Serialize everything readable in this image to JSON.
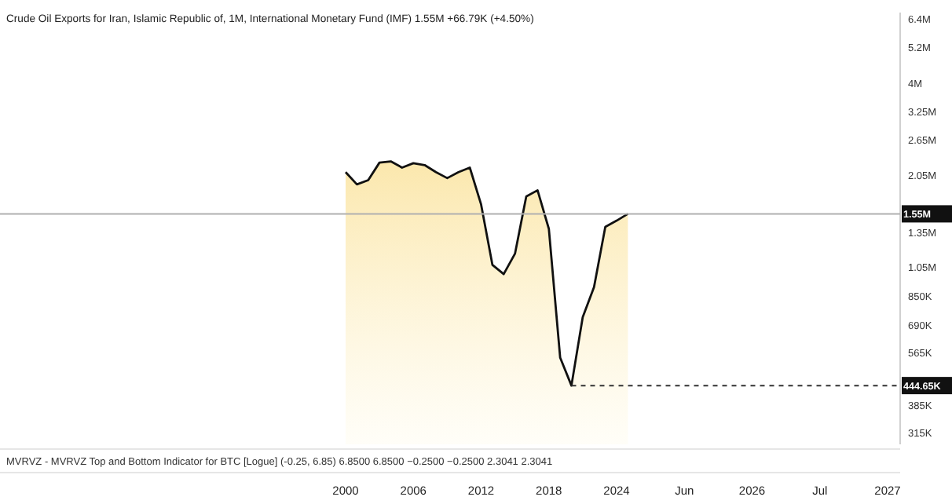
{
  "chart_data": {
    "type": "area",
    "title": "Crude Oil Exports for Iran, Islamic Republic of, 1M, International Monetary Fund (IMF)  1.55M  +66.79K (+4.50%)",
    "categories": [
      "2000",
      null,
      null,
      null,
      null,
      null,
      "2006",
      null,
      null,
      null,
      null,
      null,
      "2012",
      null,
      null,
      null,
      null,
      null,
      "2018",
      null,
      null,
      null,
      null,
      null,
      "2024",
      null,
      null,
      null,
      null,
      null,
      "Jun",
      null,
      null,
      null,
      null,
      null,
      "2026",
      null,
      null,
      null,
      null,
      null,
      "Jul",
      null,
      null,
      null,
      null,
      null,
      "2027"
    ],
    "series": [
      {
        "color": "#111111",
        "values": [
          2100000,
          1920000,
          1980000,
          2250000,
          2270000,
          2170000,
          2240000,
          2210000,
          2100000,
          2010000,
          2100000,
          2170000,
          1660000,
          1070000,
          1000000,
          1160000,
          1760000,
          1840000,
          1390000,
          545000,
          444650,
          731000,
          910000,
          1410000,
          1475000,
          1550000,
          null,
          null,
          null,
          null,
          null,
          null,
          null,
          null,
          null,
          null,
          null,
          null,
          null,
          null,
          null,
          null,
          null,
          null,
          null,
          null,
          null,
          null,
          null
        ]
      }
    ],
    "log": "y",
    "ylim": [
      290000,
      6700000
    ],
    "yticks": [
      {
        "value": 315000,
        "label": "315K"
      },
      {
        "value": 385000,
        "label": "385K"
      },
      {
        "value": 565000,
        "label": "565K"
      },
      {
        "value": 690000,
        "label": "690K"
      },
      {
        "value": 850000,
        "label": "850K"
      },
      {
        "value": 1050000,
        "label": "1.05M"
      },
      {
        "value": 1350000,
        "label": "1.35M"
      },
      {
        "value": 2050000,
        "label": "2.05M"
      },
      {
        "value": 2650000,
        "label": "2.65M"
      },
      {
        "value": 3250000,
        "label": "3.25M"
      },
      {
        "value": 4000000,
        "label": "4M"
      },
      {
        "value": 5200000,
        "label": "5.2M"
      },
      {
        "value": 6400000,
        "label": "6.4M"
      }
    ],
    "ref_lines": [
      {
        "axis": "y",
        "value": 1550000,
        "label": "1.55M",
        "color": "#b0b0b0",
        "line_style": "solid"
      },
      {
        "axis": "y",
        "value": 444650,
        "label": "444.65K",
        "color": "#333333",
        "line_style": "dashed"
      }
    ],
    "annotations": [
      "MVRVZ - MVRVZ Top and Bottom Indicator for BTC [Logue] (-0.25, 6.85)  6.8500  6.8500  −0.2500  −0.2500  2.3041  2.3041"
    ]
  }
}
